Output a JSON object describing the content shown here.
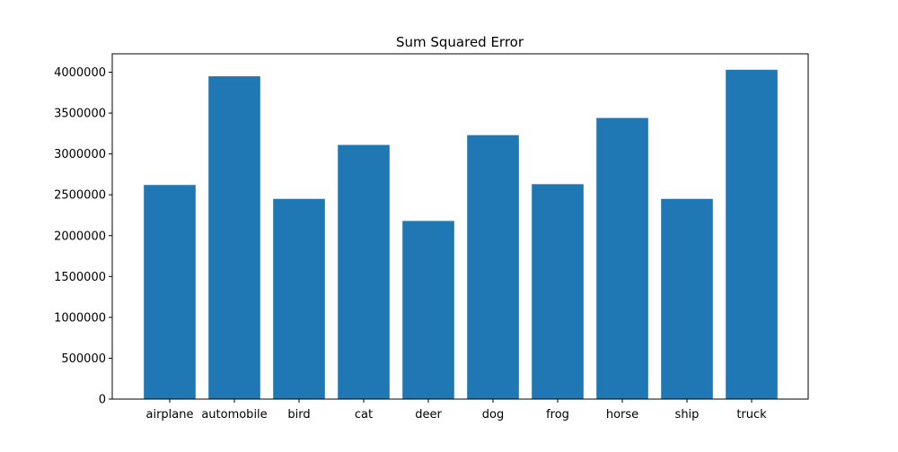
{
  "chart_data": {
    "type": "bar",
    "title": "Sum Squared Error",
    "xlabel": "",
    "ylabel": "",
    "categories": [
      "airplane",
      "automobile",
      "bird",
      "cat",
      "deer",
      "dog",
      "frog",
      "horse",
      "ship",
      "truck"
    ],
    "values": [
      2620000,
      3950000,
      2450000,
      3110000,
      2180000,
      3230000,
      2630000,
      3440000,
      2450000,
      4030000
    ],
    "ylim": [
      0,
      4225000
    ],
    "yticks": [
      0,
      500000,
      1000000,
      1500000,
      2000000,
      2500000,
      3000000,
      3500000,
      4000000
    ],
    "ytick_labels": [
      "0",
      "500000",
      "1000000",
      "1500000",
      "2000000",
      "2500000",
      "3000000",
      "3500000",
      "4000000"
    ],
    "grid": false,
    "legend": "none",
    "bar_color": "#1f77b4",
    "axis_color": "#000000"
  }
}
